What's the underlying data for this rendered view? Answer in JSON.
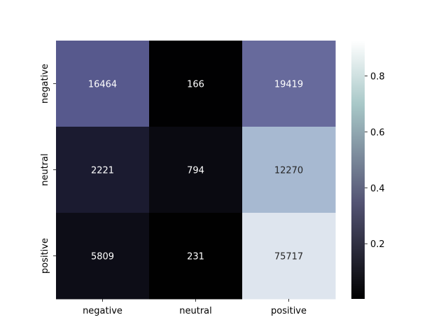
{
  "chart_data": {
    "type": "heatmap",
    "title": "",
    "xlabel": "",
    "ylabel": "",
    "x_categories": [
      "negative",
      "neutral",
      "positive"
    ],
    "y_categories": [
      "negative",
      "neutral",
      "positive"
    ],
    "values": [
      [
        16464,
        166,
        19419
      ],
      [
        2221,
        794,
        12270
      ],
      [
        5809,
        231,
        75717
      ]
    ],
    "color_values": [
      [
        0.4575,
        0.0046,
        0.5379
      ],
      [
        0.1453,
        0.0519,
        0.8028
      ],
      [
        0.0711,
        0.0028,
        0.9261
      ]
    ],
    "colormap": "bone",
    "colorbar": {
      "range": [
        0.0028,
        0.9261
      ],
      "ticks": [
        0.2,
        0.4,
        0.6,
        0.8
      ],
      "tick_labels": [
        "0.2",
        "0.4",
        "0.6",
        "0.8"
      ]
    }
  }
}
